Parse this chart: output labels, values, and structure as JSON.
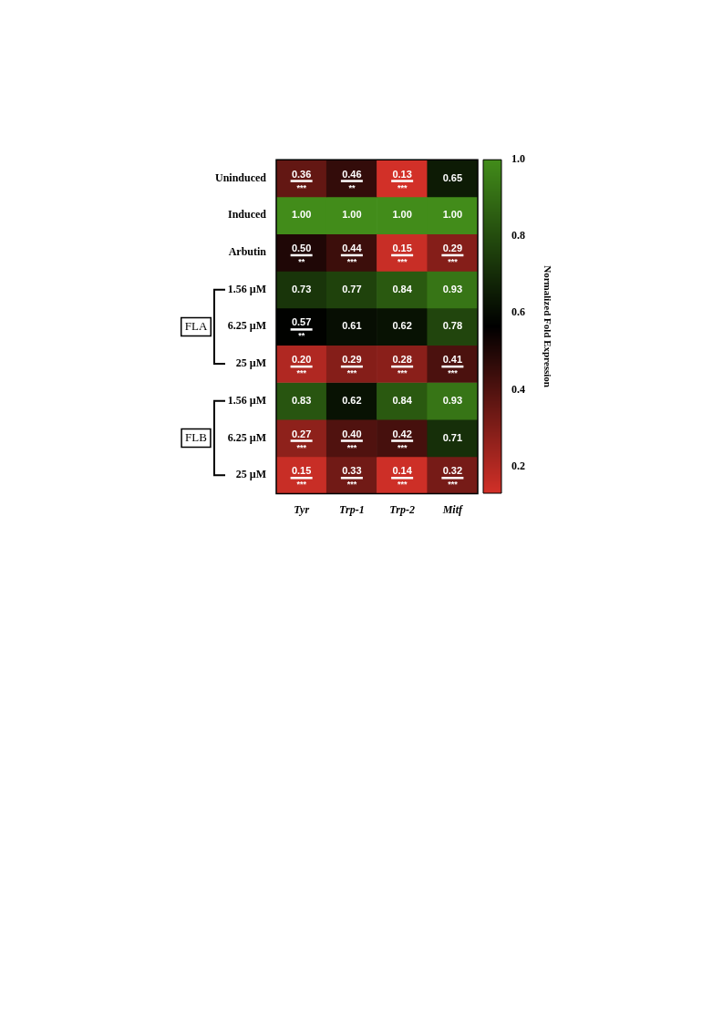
{
  "chart_data": {
    "type": "heatmap",
    "clabel": "Normalized Fold Expression",
    "categories": [
      "Tyr",
      "Trp-1",
      "Trp-2",
      "Mitf"
    ],
    "y_categories": [
      "Uninduced",
      "Induced",
      "Arbutin",
      "1.56 µM",
      "6.25 µM",
      "25 µM",
      "1.56 µM",
      "6.25 µM",
      "25 µM"
    ],
    "cells": [
      [
        0.36,
        0.46,
        0.13,
        0.65
      ],
      [
        1.0,
        1.0,
        1.0,
        1.0
      ],
      [
        0.5,
        0.44,
        0.15,
        0.29
      ],
      [
        0.73,
        0.77,
        0.84,
        0.93
      ],
      [
        0.57,
        0.61,
        0.62,
        0.78
      ],
      [
        0.2,
        0.29,
        0.28,
        0.41
      ],
      [
        0.83,
        0.62,
        0.84,
        0.93
      ],
      [
        0.27,
        0.4,
        0.42,
        0.71
      ],
      [
        0.15,
        0.33,
        0.14,
        0.32
      ]
    ],
    "cell_labels": [
      [
        "0.36\n***",
        "0.46\n**",
        "0.13\n***",
        "0.65"
      ],
      [
        "1.00",
        "1.00",
        "1.00",
        "1.00"
      ],
      [
        "0.50\n**",
        "0.44\n***",
        "0.15\n***",
        "0.29\n***"
      ],
      [
        "0.73",
        "0.77",
        "0.84",
        "0.93"
      ],
      [
        "0.57\n**",
        "0.61",
        "0.62",
        "0.78"
      ],
      [
        "0.20\n***",
        "0.29\n***",
        "0.28\n***",
        "0.41\n***"
      ],
      [
        "0.83",
        "0.62",
        "0.84",
        "0.93"
      ],
      [
        "0.27\n***",
        "0.40\n***",
        "0.42\n***",
        "0.71"
      ],
      [
        "0.15\n***",
        "0.33\n***",
        "0.14\n***",
        "0.32\n***"
      ]
    ],
    "clim": [
      0.13,
      1.0
    ],
    "cticks": [
      0.2,
      0.4,
      0.6,
      0.8,
      {
        "value": 1,
        "label": "1.0"
      }
    ],
    "annotations": [
      "FLA",
      "FLB"
    ]
  }
}
